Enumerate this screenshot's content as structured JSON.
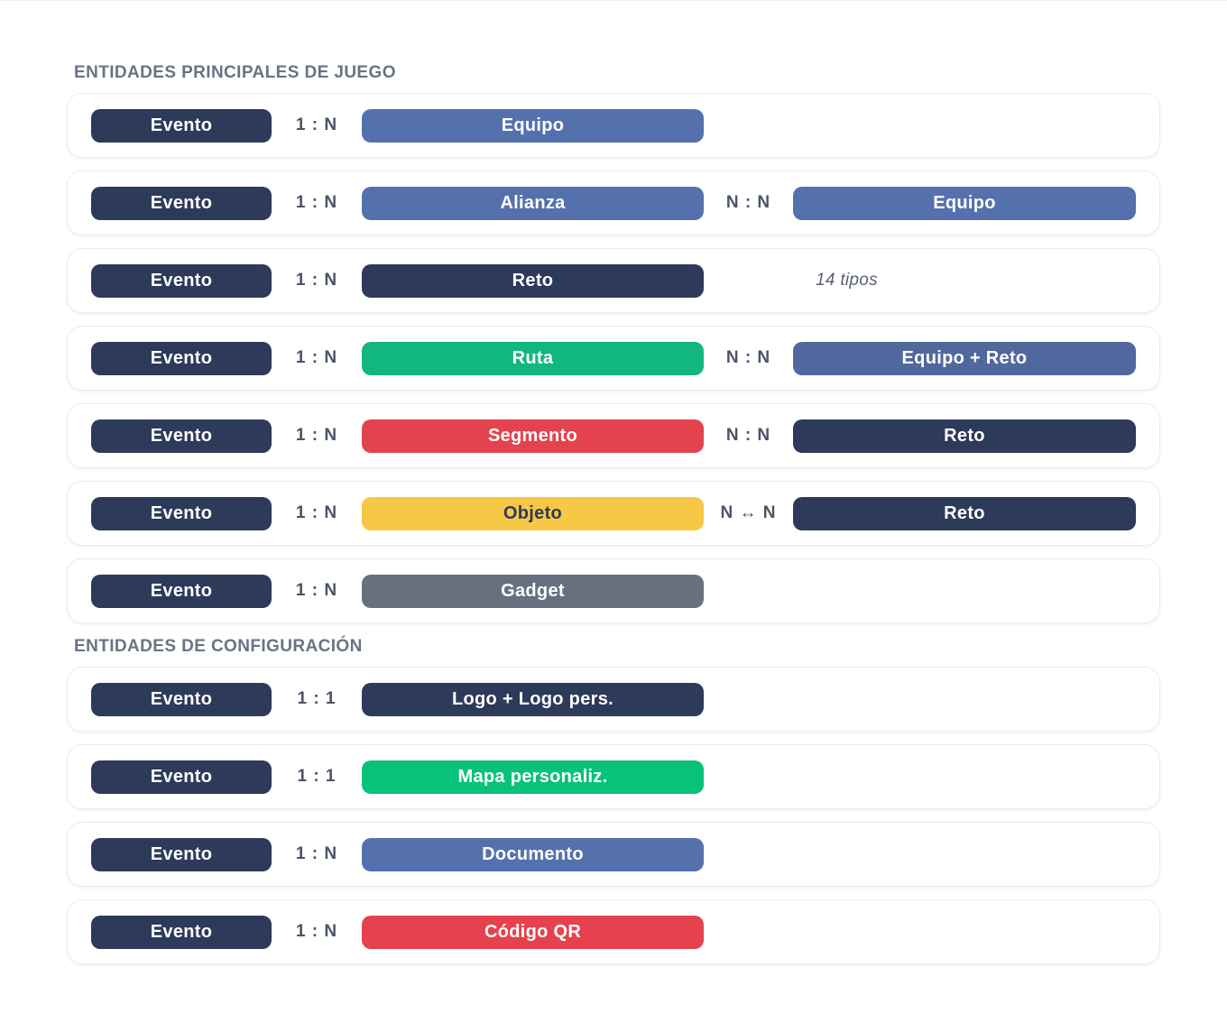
{
  "colors": {
    "navy": "#2d3a59",
    "blue": "#5571ad",
    "blue2": "#51689e",
    "green": "#12b77e",
    "green2": "#0ac17c",
    "red": "#e2434e",
    "red2": "#e6414e",
    "yellow": "#f7c845",
    "gray": "#687080",
    "yellow_text": "#2d3a59",
    "pill_text": "#ffffff",
    "section_title": "#6a7383",
    "relation_label": "#4a5467",
    "card_border": "#e9ebf0"
  },
  "sections": [
    {
      "title": "ENTIDADES PRINCIPALES DE JUEGO",
      "rows": [
        {
          "left": "Evento",
          "rel1": "1 : N",
          "mid": {
            "label": "Equipo",
            "color": "blue"
          }
        },
        {
          "left": "Evento",
          "rel1": "1 : N",
          "mid": {
            "label": "Alianza",
            "color": "blue"
          },
          "rel2": "N : N",
          "right": {
            "label": "Equipo",
            "color": "blue"
          }
        },
        {
          "left": "Evento",
          "rel1": "1 : N",
          "mid": {
            "label": "Reto",
            "color": "navy"
          },
          "note": "14 tipos"
        },
        {
          "left": "Evento",
          "rel1": "1 : N",
          "mid": {
            "label": "Ruta",
            "color": "green"
          },
          "rel2": "N : N",
          "right": {
            "label": "Equipo + Reto",
            "color": "blue2"
          }
        },
        {
          "left": "Evento",
          "rel1": "1 : N",
          "mid": {
            "label": "Segmento",
            "color": "red"
          },
          "rel2": "N : N",
          "right": {
            "label": "Reto",
            "color": "navy"
          }
        },
        {
          "left": "Evento",
          "rel1": "1 : N",
          "mid": {
            "label": "Objeto",
            "color": "yellow"
          },
          "rel2": "N ↔ N",
          "right": {
            "label": "Reto",
            "color": "navy"
          }
        },
        {
          "left": "Evento",
          "rel1": "1 : N",
          "mid": {
            "label": "Gadget",
            "color": "gray"
          }
        }
      ]
    },
    {
      "title": "ENTIDADES DE CONFIGURACIÓN",
      "rows": [
        {
          "left": "Evento",
          "rel1": "1 : 1",
          "mid": {
            "label": "Logo + Logo pers.",
            "color": "navy"
          }
        },
        {
          "left": "Evento",
          "rel1": "1 : 1",
          "mid": {
            "label": "Mapa personaliz.",
            "color": "green2"
          }
        },
        {
          "left": "Evento",
          "rel1": "1 : N",
          "mid": {
            "label": "Documento",
            "color": "blue"
          }
        },
        {
          "left": "Evento",
          "rel1": "1 : N",
          "mid": {
            "label": "Código QR",
            "color": "red2"
          }
        }
      ]
    }
  ]
}
